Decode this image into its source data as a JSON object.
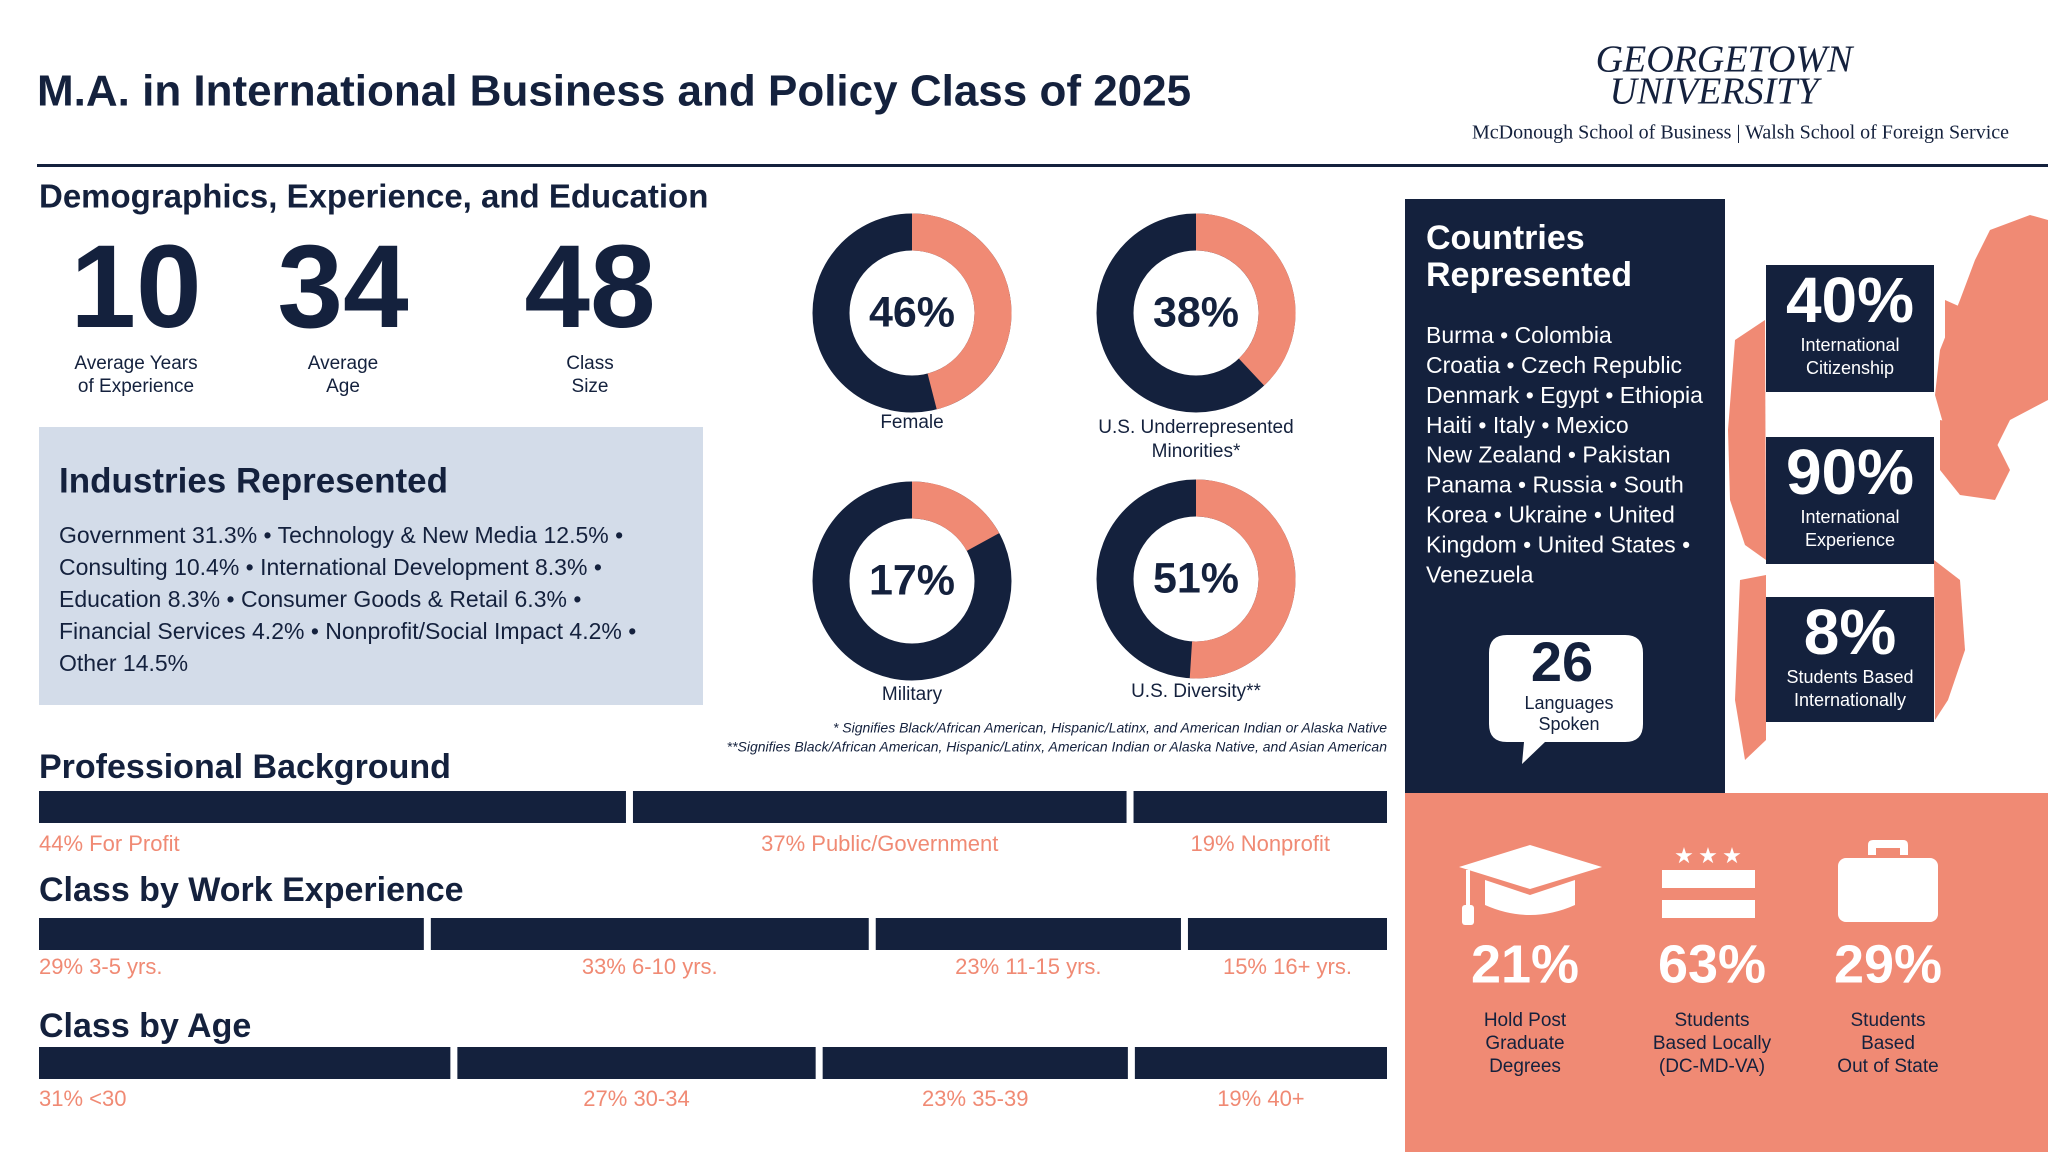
{
  "header": {
    "title": "M.A. in International Business and Policy Class of 2025",
    "logo": {
      "line1": "GEORGETOWN",
      "line2": "UNIVERSITY",
      "schools": "McDonough School of Business | Walsh School of Foreign Service"
    }
  },
  "demographics": {
    "heading": "Demographics, Experience, and Education",
    "stats": [
      {
        "value": 10,
        "label": [
          "Average Years",
          "of Experience"
        ]
      },
      {
        "value": 34,
        "label": [
          "Average",
          "Age"
        ]
      },
      {
        "value": 48,
        "label": [
          "Class",
          "Size"
        ]
      }
    ]
  },
  "industries": {
    "heading": "Industries Represented",
    "lines": [
      "Government 31.3% • Technology & New Media 12.5% •",
      "Consulting 10.4% • International Development 8.3% •",
      "Education 8.3% • Consumer Goods & Retail 6.3% •",
      "Financial Services 4.2% • Nonprofit/Social Impact 4.2% •",
      "Other 14.5%"
    ]
  },
  "donuts": [
    {
      "value": 46,
      "value_label": "46%",
      "label": [
        "Female"
      ]
    },
    {
      "value": 38,
      "value_label": "38%",
      "label": [
        "U.S. Underrepresented",
        "Minorities*"
      ]
    },
    {
      "value": 17,
      "value_label": "17%",
      "label": [
        "Military"
      ]
    },
    {
      "value": 51,
      "value_label": "51%",
      "label": [
        "U.S. Diversity**"
      ]
    }
  ],
  "footnotes": [
    "* Signifies Black/African American, Hispanic/Latinx, and American Indian or Alaska Native",
    "**Signifies Black/African American, Hispanic/Latinx, American Indian or Alaska Native, and Asian American"
  ],
  "countries": {
    "heading": [
      "Countries",
      "Represented"
    ],
    "lines": [
      "Burma • Colombia",
      "Croatia • Czech Republic",
      "Denmark • Egypt • Ethiopia",
      "Haiti • Italy • Mexico",
      "New Zealand • Pakistan",
      "Panama • Russia • South",
      "Korea • Ukraine • United",
      "Kingdom • United States •",
      "Venezuela"
    ]
  },
  "languages": {
    "value": 26,
    "label": [
      "Languages",
      "Spoken"
    ]
  },
  "international": [
    {
      "value": "40%",
      "label": [
        "International",
        "Citizenship"
      ]
    },
    {
      "value": "90%",
      "label": [
        "International",
        "Experience"
      ]
    },
    {
      "value": "8%",
      "label": [
        "Students Based",
        "Internationally"
      ]
    }
  ],
  "location": [
    {
      "value": "21%",
      "label": [
        "Hold Post",
        "Graduate",
        "Degrees"
      ]
    },
    {
      "value": "63%",
      "label": [
        "Students",
        "Based Locally",
        "(DC-MD-VA)"
      ]
    },
    {
      "value": "29%",
      "label": [
        "Students",
        "Based",
        "Out of State"
      ]
    }
  ],
  "bars": [
    {
      "heading": "Professional Background",
      "segments": [
        {
          "value": 44,
          "label": "44% For Profit"
        },
        {
          "value": 37,
          "label": "37% Public/Government"
        },
        {
          "value": 19,
          "label": "19% Nonprofit"
        }
      ]
    },
    {
      "heading": "Class by Work Experience",
      "segments": [
        {
          "value": 29,
          "label": "29% 3-5 yrs."
        },
        {
          "value": 33,
          "label": "33% 6-10 yrs."
        },
        {
          "value": 23,
          "label": "23% 11-15 yrs."
        },
        {
          "value": 15,
          "label": "15% 16+ yrs."
        }
      ]
    },
    {
      "heading": "Class by Age",
      "segments": [
        {
          "value": 31,
          "label": "31% <30"
        },
        {
          "value": 27,
          "label": "27% 30-34"
        },
        {
          "value": 23,
          "label": "23% 35-39"
        },
        {
          "value": 19,
          "label": "19% 40+"
        }
      ]
    }
  ]
}
